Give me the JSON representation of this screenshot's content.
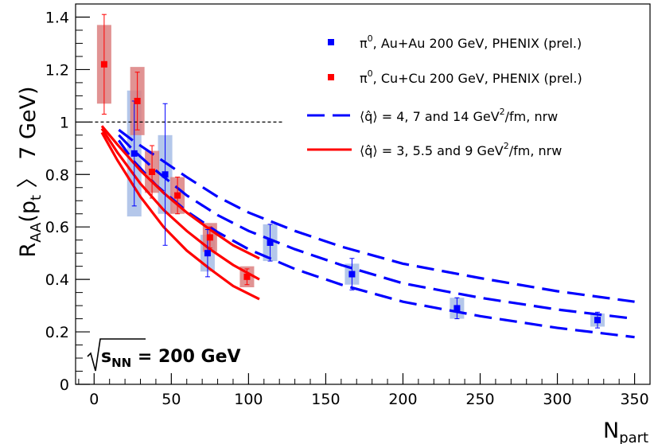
{
  "chart_data": {
    "type": "scatter",
    "xlabel_main": "N",
    "xlabel_sub": "part",
    "ylabel": {
      "r": "R",
      "aa": "AA",
      "paren_open": "(p",
      "t": "t",
      "tail": " 〉 7 GeV)"
    },
    "xlim": [
      -12,
      360
    ],
    "ylim": [
      0,
      1.45
    ],
    "x_ticks": [
      0,
      50,
      100,
      150,
      200,
      250,
      300,
      350
    ],
    "x_tick_labels": [
      "0",
      "50",
      "100",
      "150",
      "200",
      "250",
      "300",
      "350"
    ],
    "y_ticks": [
      0,
      0.2,
      0.4,
      0.6,
      0.8,
      1,
      1.2,
      1.4
    ],
    "y_tick_labels": [
      "0",
      "0.2",
      "0.4",
      "0.6",
      "0.8",
      "1",
      "1.2",
      "1.4"
    ],
    "reference_line": {
      "y": 1,
      "x_from": -3,
      "x_to": 123
    },
    "annotation": {
      "sqrt": "√",
      "s": "s",
      "nn": "NN",
      "rest": " = 200 GeV"
    },
    "series": [
      {
        "name": "π⁰, Au+Au 200 GeV, PHENIX (prel.)",
        "label_pi": "π",
        "label_sup": "0",
        "label_rest": ", Au+Au 200 GeV, PHENIX (prel.)",
        "color": "#0000ff",
        "box_color": "#a7bde6",
        "points": [
          {
            "x": 26,
            "y": 0.88,
            "err": 0.2,
            "sys": 0.24
          },
          {
            "x": 46,
            "y": 0.8,
            "err": 0.27,
            "sys": 0.15
          },
          {
            "x": 73.5,
            "y": 0.5,
            "err": 0.09,
            "sys": 0.07
          },
          {
            "x": 114,
            "y": 0.54,
            "err": 0.07,
            "sys": 0.07
          },
          {
            "x": 167,
            "y": 0.42,
            "err": 0.06,
            "sys": 0.04
          },
          {
            "x": 235,
            "y": 0.29,
            "err": 0.04,
            "sys": 0.04
          },
          {
            "x": 326,
            "y": 0.245,
            "err": 0.03,
            "sys": 0.025
          }
        ]
      },
      {
        "name": "π⁰, Cu+Cu 200 GeV, PHENIX (prel.)",
        "label_pi": "π",
        "label_sup": "0",
        "label_rest": ", Cu+Cu 200 GeV, PHENIX (prel.)",
        "color": "#ff0000",
        "box_color": "#dc8080",
        "points": [
          {
            "x": 6.5,
            "y": 1.22,
            "err": 0.19,
            "sys": 0.15
          },
          {
            "x": 28,
            "y": 1.08,
            "err": 0.11,
            "sys": 0.13
          },
          {
            "x": 37.5,
            "y": 0.81,
            "err": 0.1,
            "sys": 0.08
          },
          {
            "x": 54,
            "y": 0.72,
            "err": 0.07,
            "sys": 0.07
          },
          {
            "x": 75,
            "y": 0.56,
            "err": 0.04,
            "sys": 0.055
          },
          {
            "x": 99,
            "y": 0.41,
            "err": 0.03,
            "sys": 0.04
          }
        ]
      }
    ],
    "curves": [
      {
        "name": "⟨q̂⟩ = 4, 7 and 14 GeV²/fm, nrw",
        "label_q": "⟨q̂⟩ = 4, 7 and 14 GeV",
        "label_sup": "2",
        "label_rest": "/fm, nrw",
        "color": "#0000ff",
        "style": "dashed",
        "lines": [
          {
            "x": [
              16,
              25,
              40,
              60,
              80,
              100,
              130,
              160,
              200,
              250,
              300,
              350
            ],
            "y": [
              0.97,
              0.93,
              0.87,
              0.79,
              0.715,
              0.655,
              0.585,
              0.525,
              0.46,
              0.405,
              0.355,
              0.315
            ]
          },
          {
            "x": [
              16,
              25,
              40,
              60,
              80,
              100,
              130,
              160,
              200,
              250,
              300,
              350
            ],
            "y": [
              0.95,
              0.895,
              0.815,
              0.72,
              0.645,
              0.585,
              0.515,
              0.455,
              0.385,
              0.33,
              0.285,
              0.25
            ]
          },
          {
            "x": [
              16,
              25,
              40,
              60,
              80,
              100,
              130,
              160,
              200,
              250,
              300,
              350
            ],
            "y": [
              0.93,
              0.855,
              0.76,
              0.66,
              0.58,
              0.515,
              0.44,
              0.38,
              0.315,
              0.26,
              0.215,
              0.18
            ]
          }
        ]
      },
      {
        "name": "⟨q̂⟩ = 3, 5.5 and 9 GeV²/fm, nrw",
        "label_q": "⟨q̂⟩ = 3, 5.5 and 9 GeV",
        "label_sup": "2",
        "label_rest": "/fm, nrw",
        "color": "#ff0000",
        "style": "solid",
        "lines": [
          {
            "x": [
              5,
              15,
              30,
              45,
              60,
              75,
              90,
              107
            ],
            "y": [
              0.985,
              0.915,
              0.815,
              0.73,
              0.655,
              0.59,
              0.53,
              0.48
            ]
          },
          {
            "x": [
              5,
              15,
              30,
              45,
              60,
              75,
              90,
              107
            ],
            "y": [
              0.975,
              0.885,
              0.765,
              0.665,
              0.585,
              0.515,
              0.455,
              0.4
            ]
          },
          {
            "x": [
              5,
              15,
              30,
              45,
              60,
              75,
              90,
              107
            ],
            "y": [
              0.96,
              0.855,
              0.715,
              0.6,
              0.51,
              0.44,
              0.375,
              0.325
            ]
          }
        ]
      }
    ]
  }
}
